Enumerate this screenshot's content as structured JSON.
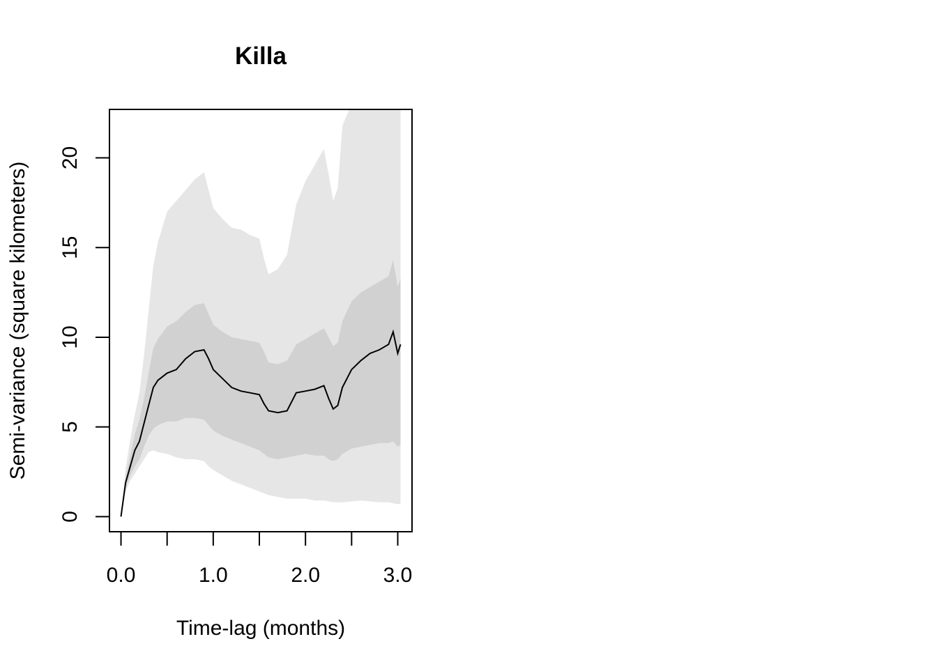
{
  "chart_data": {
    "type": "line",
    "title": "Killa",
    "xlabel": "Time-lag (months)",
    "ylabel": "Semi-variance (square kilometers)",
    "xlim": [
      -0.125,
      3.155
    ],
    "ylim": [
      -0.84,
      22.7
    ],
    "x_ticks": [
      0.0,
      0.5,
      1.0,
      1.5,
      2.0,
      2.5,
      3.0
    ],
    "x_tick_labels": [
      "0.0",
      "",
      "1.0",
      "",
      "2.0",
      "",
      "3.0"
    ],
    "y_ticks": [
      0,
      5,
      10,
      15,
      20
    ],
    "y_tick_labels": [
      "0",
      "5",
      "10",
      "15",
      "20"
    ],
    "grid": false,
    "colors": {
      "line": "#000000",
      "band_outer": "#e6e6e6",
      "band_inner": "#d1d1d1"
    },
    "series": [
      {
        "x": [
          0.0,
          0.05,
          0.1,
          0.15,
          0.2,
          0.25,
          0.3,
          0.35,
          0.4,
          0.5,
          0.6,
          0.7,
          0.8,
          0.9,
          0.95,
          1.0,
          1.1,
          1.2,
          1.3,
          1.4,
          1.5,
          1.55,
          1.6,
          1.7,
          1.8,
          1.9,
          2.0,
          2.1,
          2.2,
          2.25,
          2.3,
          2.35,
          2.4,
          2.5,
          2.6,
          2.7,
          2.8,
          2.9,
          2.95,
          3.0,
          3.03
        ],
        "y": [
          0.0,
          1.9,
          2.8,
          3.7,
          4.2,
          5.2,
          6.2,
          7.2,
          7.6,
          8.0,
          8.2,
          8.8,
          9.2,
          9.3,
          8.8,
          8.2,
          7.7,
          7.2,
          7.0,
          6.9,
          6.8,
          6.3,
          5.9,
          5.8,
          5.9,
          6.9,
          7.0,
          7.1,
          7.3,
          6.6,
          6.0,
          6.2,
          7.2,
          8.2,
          8.7,
          9.1,
          9.3,
          9.6,
          10.3,
          9.1,
          9.6
        ],
        "inner_lower": [
          0.0,
          1.6,
          2.3,
          2.8,
          3.2,
          3.9,
          4.5,
          4.9,
          5.1,
          5.3,
          5.3,
          5.5,
          5.5,
          5.4,
          5.1,
          4.8,
          4.5,
          4.3,
          4.1,
          3.9,
          3.7,
          3.5,
          3.3,
          3.2,
          3.3,
          3.4,
          3.5,
          3.4,
          3.4,
          3.2,
          3.1,
          3.2,
          3.5,
          3.8,
          3.9,
          4.0,
          4.1,
          4.1,
          4.2,
          3.9,
          4.0
        ],
        "inner_upper": [
          0.0,
          2.2,
          3.4,
          4.6,
          5.4,
          6.6,
          8.0,
          9.4,
          9.9,
          10.6,
          10.9,
          11.4,
          11.8,
          11.9,
          11.3,
          10.7,
          10.3,
          10.0,
          9.9,
          9.8,
          9.7,
          9.2,
          8.6,
          8.5,
          8.7,
          9.6,
          9.9,
          10.2,
          10.5,
          10.0,
          9.5,
          9.7,
          10.9,
          12.0,
          12.5,
          12.8,
          13.1,
          13.4,
          14.3,
          12.8,
          13.3
        ],
        "outer_lower": [
          0.0,
          1.4,
          2.0,
          2.4,
          2.8,
          3.2,
          3.6,
          3.7,
          3.6,
          3.5,
          3.3,
          3.2,
          3.2,
          3.1,
          2.8,
          2.6,
          2.3,
          2.0,
          1.8,
          1.6,
          1.4,
          1.3,
          1.2,
          1.1,
          1.0,
          1.0,
          1.0,
          0.9,
          0.9,
          0.85,
          0.8,
          0.8,
          0.8,
          0.85,
          0.9,
          0.85,
          0.8,
          0.8,
          0.75,
          0.7,
          0.7
        ],
        "outer_upper": [
          0.0,
          2.7,
          4.3,
          5.7,
          6.9,
          9.0,
          11.5,
          14.0,
          15.3,
          17.0,
          17.6,
          18.2,
          18.8,
          19.2,
          18.2,
          17.2,
          16.6,
          16.1,
          16.0,
          15.7,
          15.5,
          14.4,
          13.5,
          13.8,
          14.6,
          17.4,
          18.7,
          19.6,
          20.5,
          19.1,
          17.6,
          18.3,
          21.8,
          23.0,
          23.0,
          23.0,
          23.0,
          23.0,
          23.0,
          23.0,
          23.0
        ]
      }
    ]
  }
}
